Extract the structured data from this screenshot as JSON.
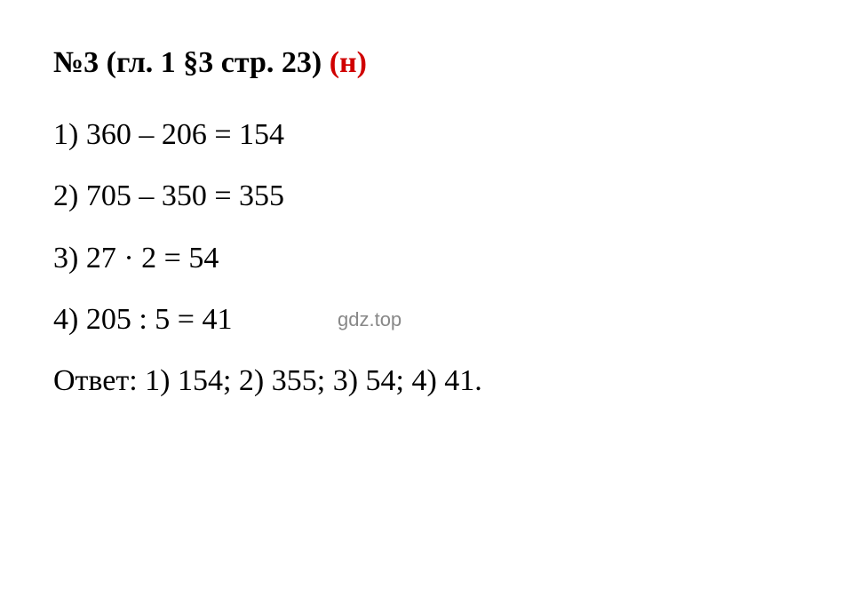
{
  "heading": {
    "black_part": "№3 (гл. 1 §3 стр. 23) ",
    "red_part": "(н)"
  },
  "lines": [
    "1) 360 – 206 = 154",
    "2) 705 – 350 = 355",
    "3) 27 · 2 = 54",
    "4) 205 : 5 = 41"
  ],
  "answer": "Ответ: 1) 154; 2) 355; 3) 54; 4) 41.",
  "watermark": "gdz.top",
  "styling": {
    "background_color": "#ffffff",
    "text_color": "#000000",
    "red_color": "#d00000",
    "watermark_color": "#888888",
    "font_family": "Times New Roman",
    "font_size": 34,
    "line_height": 1.8,
    "heading_font_weight": "bold",
    "watermark_font_size": 22,
    "watermark_font_family": "Arial"
  }
}
